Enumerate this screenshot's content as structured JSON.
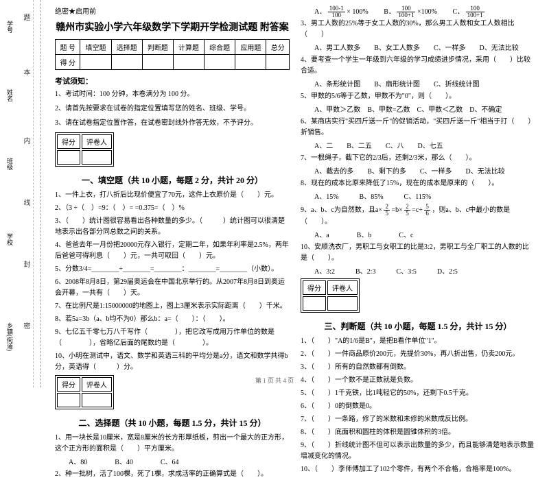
{
  "binding": {
    "labels": [
      "学号",
      "姓名",
      "班级",
      "学校",
      "乡镇(街道)"
    ],
    "chars": [
      "题",
      "本",
      "内",
      "线",
      "封",
      "密"
    ]
  },
  "header": {
    "secret": "绝密★启用前",
    "title": "赣州市实验小学六年级数学下学期开学检测试题 附答案"
  },
  "scoreTable": {
    "r1": [
      "题 号",
      "填空题",
      "选择题",
      "判断题",
      "计算题",
      "综合题",
      "应用题",
      "总分"
    ],
    "r2": [
      "得 分",
      "",
      "",
      "",
      "",
      "",
      "",
      ""
    ]
  },
  "notice": {
    "head": "考试须知：",
    "items": [
      "1、考试时间：100 分钟，本卷满分为 100 分。",
      "2、请首先按要求在试卷的指定位置填写您的姓名、班级、学号。",
      "3、请在试卷指定位置作答，在试卷密封线外作答无效，不予评分。"
    ]
  },
  "secHead": {
    "c1": "得分",
    "c2": "评卷人"
  },
  "sec1": {
    "title": "一、填空题（共 10 小题，每题 2 分，共计 20 分）",
    "q": [
      "1、一件上衣，打八折后比现价便宜了70元，这件上衣原价是（　　）元。",
      "2、（3 ÷（　）=9：（　）= =0.375=（　）%",
      "3、（　　）统计图很容易看出各种数量的多少。（　　　）统计图可以很清楚地表示出各部分同总数之间的关系。",
      "4、爸爸去年一月份把20000元存入银行，定期二年，如果年利率是2.5%，两年后爸爸可得利息（　　）元，一共可取回（　　）元。",
      "5、分数3/4=________÷________=________：________=________（小数）。",
      "6、2008年8月8日，第29届奥运会在中国北京举行的。从2007年8月8日到奥运会开幕，一共有（　　）天。",
      "7、在比例尺是1:15000000的地图上，图上3厘米表示实际距离（　　）千米。",
      "8、若5a=3b（a、b均不为0）那么b：a=（　　）：（　　）。",
      "9、七亿五千零七万八千写作（　　　　），把它改写成用万作单位的数是（　　　　），省略亿后面的尾数约是（　　　　）。",
      "10、小明在测试中，语文、数学和英语三科的平均分是a分，语文和数学共得b分，英语得（　　　）分。"
    ]
  },
  "sec2": {
    "title": "二、选择题（共 10 小题，每题 1.5 分，共计 15 分）",
    "q1": "1、用一块长是10厘米，宽是8厘米的长方形厚纸板，剪出一个最大的正方形，这个正方形的面积是（　　）平方厘米。",
    "q1o": "A、80　　　　B、40　　　　C、64",
    "q2": "2、种一批树，活了100棵，死了1棵，求成活率的正确算式是（　　）。",
    "q2a": "A．",
    "q2af": {
      "n": "100-1",
      "d": "100"
    },
    "q2at": " × 100%",
    "q2b": "B．",
    "q2bf": {
      "n": "100",
      "d": "100+1"
    },
    "q2bt": "×100%",
    "q2c": "C．",
    "q2cf": {
      "n": "100",
      "d": "100+1"
    },
    "q3": "3、男工人数的25%等于女工人数的30%，那么男工人数和女工人数相比（　　）",
    "q3o": "A、男工人数多　　B、女工人数多　　C、一样多　　D、无法比较",
    "q4": "4、要考查一个学生一年级到六年级的学习成绩进步情况，采用（　　）比较合适。",
    "q4o": "A、条形统计图　　B、扇形统计图　　C、折线统计图",
    "q5": "5、甲数的5/6等于乙数，甲数不为\"0\"，则（　　）。",
    "q5o": "A、甲数＞乙数　B、甲数=乙数　C、甲数＜乙数　D、不确定",
    "q6": "6、某商店实行\"买四斤送一斤\"的促销活动，\"买四斤送一斤\"相当于打（　　）折销售。",
    "q6o": "A、二　　B、二五　　C、八　　D、七五",
    "q7": "7、一根绳子，截下它的2/3后，还剩2/3米，那么（　　）。",
    "q7o": "A、截去的多　　B、剩下的多　　C、一样多　　D、无法比较",
    "q8": "8、现在的成本比原来降低了15%，现在的成本是原来的（　　）。",
    "q8o": "A、15%　　　B、85%　　　C、115%",
    "q9t": "9、a、b、c为自然数，且a×",
    "q9f1": {
      "n": "2",
      "d": "5"
    },
    "q9m": "=b×",
    "q9f2": {
      "n": "2",
      "d": "5"
    },
    "q9m2": "=c÷",
    "q9f3": {
      "n": "5",
      "d": "6"
    },
    "q9e": "，则a、b、c中最小的数是（　　）。",
    "q9o": "A、a　　　　B、b　　　　C、c",
    "q10": "10、安顺洗衣厂，男职工与女职工的比是3:2，男职工与全厂职工的人数的比是（　　）。",
    "q10o": "A、3:2　　　B、2:3　　　C、3:5　　　D、2:5"
  },
  "sec3": {
    "title": "三、判断题（共 10 小题，每题 1.5 分，共计 15 分）",
    "q": [
      "1、（　　）\"A的1/6是B\"，是把B看作单位\"1\"。",
      "2、（　　）一件商品原价200元，先提价30%，再八折出售，仍卖200元。",
      "3、（　　）所有的自然数都有倒数。",
      "4、（　　）一个数不是正数就是负数。",
      "5、（　　）1千克铁，比1吨轻它的50%，还剩下0.5千克。",
      "6、（　　）0的倒数是0。",
      "7、（　　）一条路，修了的米数和未修的米数成反比例。",
      "8、（　　）底面积和圆柱的体积是圆锥体积的3倍。",
      "9、（　　）折线统计图不但可以表示出数量的多少，而且能够清楚地表示数量增减变化的情况。",
      "10、（　　）李师傅加工了102个零件，有两个不合格，合格率是100%。"
    ]
  },
  "footer": "第 1 页 共 4 页"
}
